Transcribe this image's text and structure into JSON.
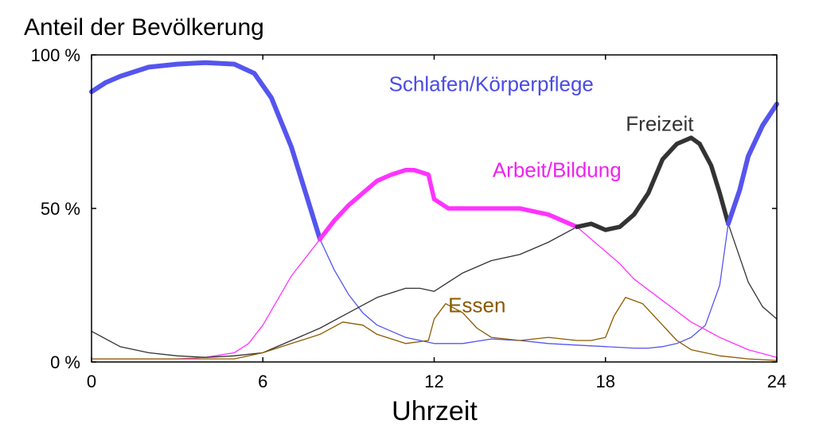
{
  "chart_data": {
    "type": "line",
    "ylabel": "Anteil der Bevölkerung",
    "xlabel": "Uhrzeit",
    "xlim": [
      0,
      24
    ],
    "ylim": [
      0,
      100
    ],
    "x_ticks": [
      0,
      6,
      12,
      18,
      24
    ],
    "x_tick_labels": [
      "0",
      "6",
      "12",
      "18",
      "24"
    ],
    "y_ticks": [
      0,
      50,
      100
    ],
    "y_tick_labels": [
      "0 %",
      "50 %",
      "100 %"
    ],
    "grid": false,
    "legend": "inline labels",
    "series": [
      {
        "name": "Schlafen/Körperpflege",
        "color": "#5555ee",
        "label_color": "#4b4be6",
        "label_x": 14.0,
        "label_y": 90,
        "x": [
          0,
          0.5,
          1,
          2,
          3,
          4,
          5,
          5.7,
          6.3,
          7,
          7.5,
          8,
          8.5,
          9,
          9.5,
          10,
          11,
          12,
          13,
          14,
          15,
          16,
          17,
          18,
          19,
          19.5,
          20,
          20.5,
          21,
          21.5,
          22,
          22.3,
          22.7,
          23,
          23.5,
          24
        ],
        "y": [
          88,
          91,
          93,
          96,
          97,
          97.5,
          97,
          94,
          86,
          70,
          55,
          40,
          30,
          22,
          16,
          12,
          8,
          6,
          6,
          7.5,
          7,
          6,
          5.5,
          5,
          4.5,
          4.5,
          5,
          6,
          8,
          12,
          25,
          45,
          56,
          67,
          77,
          84
        ]
      },
      {
        "name": "Arbeit/Bildung",
        "color": "#ff33ff",
        "label_color": "#ee22ee",
        "label_x": 16.3,
        "label_y": 62,
        "x": [
          0,
          1,
          2,
          3,
          4,
          5,
          5.5,
          6,
          6.5,
          7,
          7.5,
          8,
          8.5,
          9,
          9.5,
          10,
          10.5,
          11,
          11.3,
          11.8,
          12,
          12.5,
          13,
          14,
          15,
          16,
          17,
          17.5,
          18,
          18.5,
          19,
          20,
          21,
          22,
          23,
          24
        ],
        "y": [
          1,
          1,
          1,
          1,
          1.5,
          3,
          6,
          12,
          20,
          28,
          34,
          40,
          46,
          51,
          55,
          59,
          61,
          62.5,
          62.5,
          61,
          53,
          50,
          50,
          50,
          50,
          48,
          44,
          40,
          36,
          32,
          27,
          20,
          13,
          8,
          4,
          1.5
        ]
      },
      {
        "name": "Freizeit",
        "color": "#333333",
        "label_color": "#333333",
        "label_x": 19.9,
        "label_y": 77,
        "x": [
          0,
          1,
          2,
          3,
          4,
          5,
          6,
          7,
          8,
          9,
          10,
          11,
          11.5,
          12,
          13,
          14,
          15,
          16,
          17,
          17.5,
          18,
          18.5,
          19,
          19.5,
          20,
          20.5,
          21,
          21.3,
          21.7,
          22,
          22.3,
          23,
          23.5,
          24
        ],
        "y": [
          10,
          5,
          3,
          2,
          1.5,
          2,
          3,
          7,
          11,
          16,
          21,
          24,
          24,
          23,
          29,
          33,
          35,
          39,
          44,
          45,
          43,
          44,
          48,
          55,
          66,
          71,
          73,
          71,
          64,
          55,
          45,
          26,
          18,
          14
        ]
      },
      {
        "name": "Essen",
        "color": "#8b5a00",
        "label_color": "#8b5a00",
        "label_x": 13.5,
        "label_y": 18,
        "x": [
          0,
          1,
          2,
          3,
          4,
          5,
          6,
          7,
          8,
          8.8,
          9.5,
          10,
          11,
          11.8,
          12,
          12.4,
          13,
          13.5,
          14,
          15,
          16,
          17,
          17.5,
          18,
          18.3,
          18.7,
          19.3,
          20,
          20.5,
          21,
          22,
          23,
          24
        ],
        "y": [
          1,
          1,
          1,
          1,
          1,
          1,
          3,
          6,
          9,
          13,
          12,
          9,
          6,
          7,
          14,
          19,
          16,
          11,
          8,
          7,
          8,
          7,
          7,
          8,
          15,
          21,
          19,
          12,
          7,
          4,
          2,
          1,
          0.5
        ]
      }
    ],
    "highlight": [
      {
        "series": 0,
        "from": 0,
        "to": 8,
        "width": 6
      },
      {
        "series": 1,
        "from": 8,
        "to": 17,
        "width": 5.5
      },
      {
        "series": 2,
        "from": 17,
        "to": 22.3,
        "width": 5.5
      },
      {
        "series": 0,
        "from": 22.3,
        "to": 24,
        "width": 6
      }
    ]
  }
}
